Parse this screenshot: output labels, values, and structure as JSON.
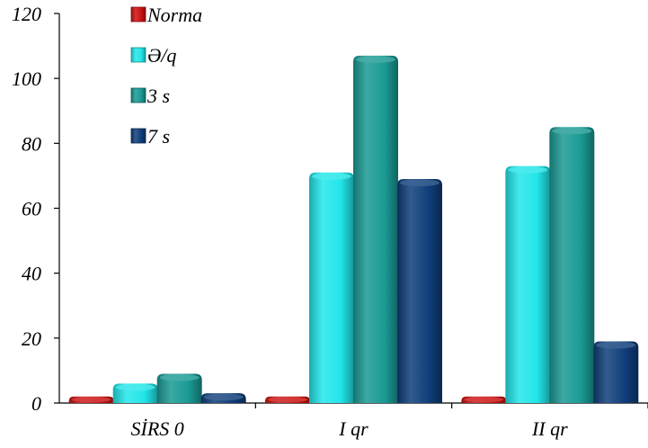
{
  "chart_data": {
    "type": "bar",
    "categories": [
      "SİRS 0",
      "I qr",
      "II qr"
    ],
    "series": [
      {
        "name": "Norma",
        "values": [
          2,
          2,
          2
        ],
        "color": "#cc1111"
      },
      {
        "name": "Ə/q",
        "values": [
          6,
          71,
          73
        ],
        "color": "#22e6ea"
      },
      {
        "name": "3 s",
        "values": [
          9,
          107,
          85
        ],
        "color": "#1a9a94"
      },
      {
        "name": "7 s",
        "values": [
          3,
          69,
          19
        ],
        "color": "#0f3e7a"
      }
    ],
    "ylim": [
      0,
      120
    ],
    "yticks": [
      "0",
      "20",
      "40",
      "60",
      "80",
      "100",
      "120"
    ],
    "legend_position": "top-left",
    "grid": false,
    "style": "3d-cylinder"
  }
}
